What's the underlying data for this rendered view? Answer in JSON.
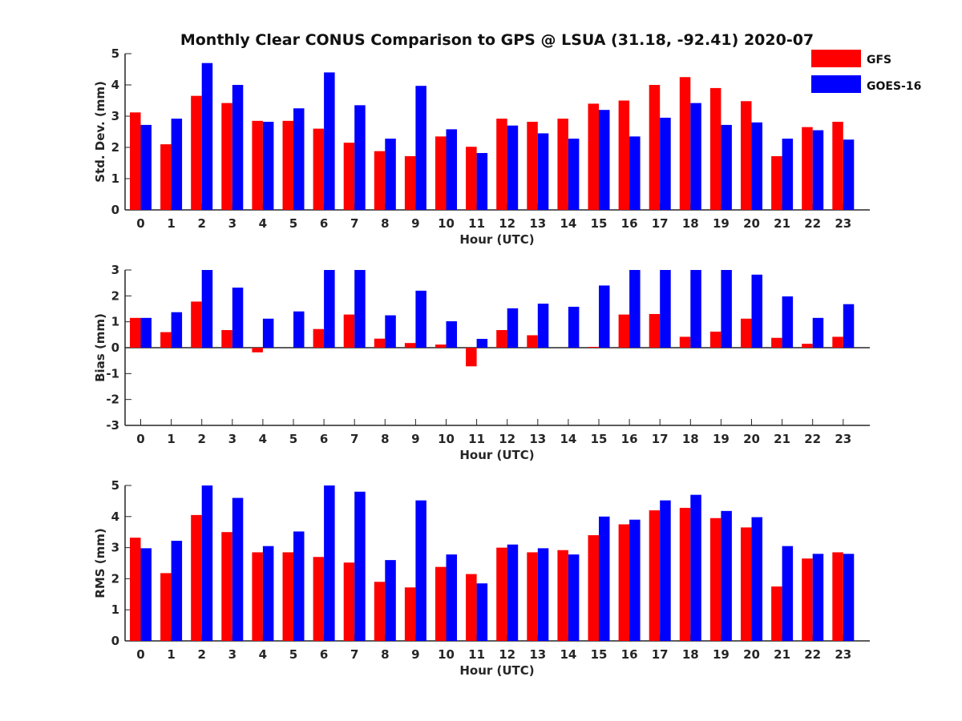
{
  "figure_title": "Monthly Clear CONUS Comparison to GPS @ LSUA (31.18, -92.41) 2020-07",
  "legend": [
    {
      "label": "GFS",
      "color": "#ff0000"
    },
    {
      "label": "GOES-16",
      "color": "#0000ff"
    }
  ],
  "chart_data": [
    {
      "type": "bar",
      "title": "Monthly Clear CONUS Comparison to GPS @ LSUA (31.18, -92.41) 2020-07",
      "xlabel": "Hour (UTC)",
      "ylabel": "Std. Dev. (mm)",
      "ylim": [
        0,
        5
      ],
      "yticks": [
        0,
        1,
        2,
        3,
        4,
        5
      ],
      "categories": [
        "0",
        "1",
        "2",
        "3",
        "4",
        "5",
        "6",
        "7",
        "8",
        "9",
        "10",
        "11",
        "12",
        "13",
        "14",
        "15",
        "16",
        "17",
        "18",
        "19",
        "20",
        "21",
        "22",
        "23"
      ],
      "legend_position": "top-right",
      "series": [
        {
          "name": "GFS",
          "color": "#ff0000",
          "values": [
            3.12,
            2.1,
            3.65,
            3.42,
            2.85,
            2.85,
            2.6,
            2.15,
            1.88,
            1.72,
            2.35,
            2.02,
            2.92,
            2.82,
            2.92,
            3.4,
            3.5,
            4.0,
            4.25,
            3.9,
            3.48,
            1.72,
            2.65,
            2.82
          ]
        },
        {
          "name": "GOES-16",
          "color": "#0000ff",
          "values": [
            2.72,
            2.92,
            4.7,
            4.0,
            2.82,
            3.25,
            4.4,
            3.35,
            2.28,
            3.97,
            2.58,
            1.82,
            2.7,
            2.45,
            2.28,
            3.2,
            2.35,
            2.95,
            3.42,
            2.72,
            2.8,
            2.28,
            2.55,
            2.25
          ]
        }
      ]
    },
    {
      "type": "bar",
      "xlabel": "Hour (UTC)",
      "ylabel": "Bias (mm)",
      "ylim": [
        -3,
        3
      ],
      "yticks": [
        -3,
        -2,
        -1,
        0,
        1,
        2,
        3
      ],
      "categories": [
        "0",
        "1",
        "2",
        "3",
        "4",
        "5",
        "6",
        "7",
        "8",
        "9",
        "10",
        "11",
        "12",
        "13",
        "14",
        "15",
        "16",
        "17",
        "18",
        "19",
        "20",
        "21",
        "22",
        "23"
      ],
      "series": [
        {
          "name": "GFS",
          "color": "#ff0000",
          "values": [
            1.15,
            0.6,
            1.78,
            0.68,
            -0.18,
            0.0,
            0.72,
            1.28,
            0.35,
            0.18,
            0.12,
            -0.72,
            0.68,
            0.48,
            0.0,
            0.03,
            1.28,
            1.3,
            0.42,
            0.62,
            1.12,
            0.38,
            0.15,
            0.42
          ]
        },
        {
          "name": "GOES-16",
          "color": "#0000ff",
          "values": [
            1.15,
            1.37,
            3.0,
            2.32,
            1.12,
            1.4,
            3.0,
            3.0,
            1.25,
            2.2,
            1.02,
            0.34,
            1.52,
            1.7,
            1.58,
            2.4,
            3.0,
            3.0,
            3.0,
            3.0,
            2.82,
            1.98,
            1.15,
            1.68
          ]
        }
      ]
    },
    {
      "type": "bar",
      "xlabel": "Hour (UTC)",
      "ylabel": "RMS (mm)",
      "ylim": [
        0,
        5
      ],
      "yticks": [
        0,
        1,
        2,
        3,
        4,
        5
      ],
      "categories": [
        "0",
        "1",
        "2",
        "3",
        "4",
        "5",
        "6",
        "7",
        "8",
        "9",
        "10",
        "11",
        "12",
        "13",
        "14",
        "15",
        "16",
        "17",
        "18",
        "19",
        "20",
        "21",
        "22",
        "23"
      ],
      "series": [
        {
          "name": "GFS",
          "color": "#ff0000",
          "values": [
            3.32,
            2.18,
            4.05,
            3.5,
            2.85,
            2.85,
            2.7,
            2.52,
            1.9,
            1.72,
            2.38,
            2.15,
            3.0,
            2.85,
            2.92,
            3.4,
            3.75,
            4.2,
            4.28,
            3.95,
            3.65,
            1.75,
            2.65,
            2.85
          ]
        },
        {
          "name": "GOES-16",
          "color": "#0000ff",
          "values": [
            2.98,
            3.22,
            5.0,
            4.6,
            3.05,
            3.52,
            5.0,
            4.8,
            2.6,
            4.52,
            2.78,
            1.85,
            3.1,
            2.98,
            2.78,
            4.0,
            3.9,
            4.52,
            4.7,
            4.18,
            3.98,
            3.05,
            2.8,
            2.8
          ]
        }
      ]
    }
  ]
}
